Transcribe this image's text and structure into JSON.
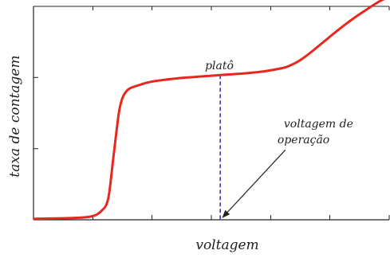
{
  "chart_data": {
    "type": "line",
    "title": "",
    "xlabel": "voltagem",
    "ylabel": "taxa de contagem",
    "xlim": [
      0,
      100
    ],
    "ylim": [
      0,
      100
    ],
    "grid": false,
    "x_ticks": [
      0,
      16.7,
      33.3,
      50,
      66.7,
      83.3,
      100
    ],
    "y_ticks": [
      0,
      33.3,
      66.7,
      100
    ],
    "series": [
      {
        "color": "#e8281e",
        "x": [
          0,
          10,
          16,
          19,
          21,
          22.5,
          24,
          25,
          26,
          27,
          28.5,
          30,
          32,
          35,
          40,
          45,
          50,
          55,
          60,
          65,
          70,
          72,
          75,
          78,
          81,
          84,
          87,
          90,
          93,
          96,
          98,
          100
        ],
        "y": [
          0.5,
          0.8,
          1.5,
          4,
          10,
          30,
          50,
          57,
          60,
          61.5,
          62.5,
          63.3,
          64.3,
          65.2,
          66.2,
          66.9,
          67.5,
          68.1,
          68.7,
          69.6,
          71.1,
          72.2,
          74.8,
          78.5,
          82.6,
          86.7,
          90.7,
          94.4,
          97.8,
          101.1,
          103,
          104.4
        ]
      }
    ],
    "annotations": [
      {
        "text": "platô",
        "x": 50,
        "y": 72
      },
      {
        "text_lines": [
          "voltagem de",
          "operação"
        ],
        "x": 65,
        "y": 38
      }
    ],
    "operating_point": {
      "x": 52.5,
      "y": 67.8,
      "line_color": "#3a3ab0"
    }
  }
}
